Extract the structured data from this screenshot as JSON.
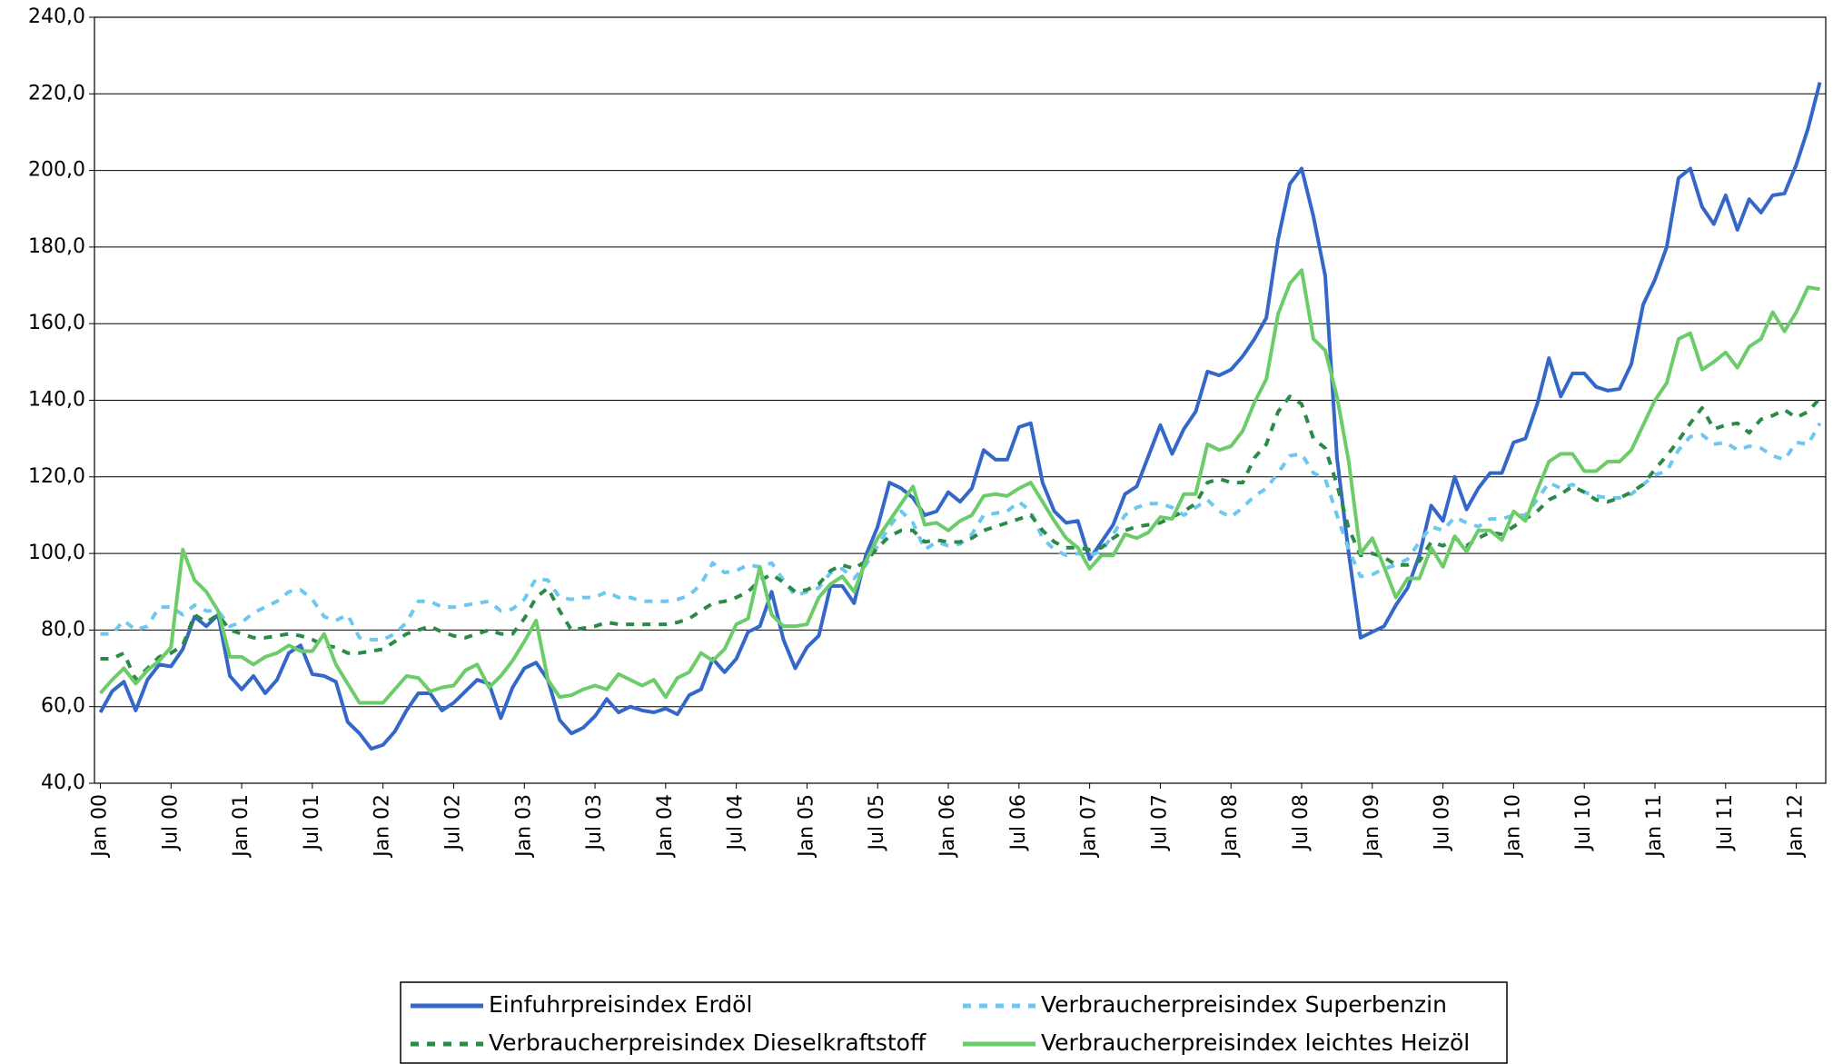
{
  "chart_data": {
    "type": "line",
    "categories": [
      "Jan 00",
      null,
      null,
      null,
      null,
      null,
      "Jul 00",
      null,
      null,
      null,
      null,
      null,
      "Jan 01",
      null,
      null,
      null,
      null,
      null,
      "Jul 01",
      null,
      null,
      null,
      null,
      null,
      "Jan 02",
      null,
      null,
      null,
      null,
      null,
      "Jul 02",
      null,
      null,
      null,
      null,
      null,
      "Jan 03",
      null,
      null,
      null,
      null,
      null,
      "Jul 03",
      null,
      null,
      null,
      null,
      null,
      "Jan 04",
      null,
      null,
      null,
      null,
      null,
      "Jul 04",
      null,
      null,
      null,
      null,
      null,
      "Jan 05",
      null,
      null,
      null,
      null,
      null,
      "Jul 05",
      null,
      null,
      null,
      null,
      null,
      "Jan 06",
      null,
      null,
      null,
      null,
      null,
      "Jul 06",
      null,
      null,
      null,
      null,
      null,
      "Jan 07",
      null,
      null,
      null,
      null,
      null,
      "Jul 07",
      null,
      null,
      null,
      null,
      null,
      "Jan 08",
      null,
      null,
      null,
      null,
      null,
      "Jul 08",
      null,
      null,
      null,
      null,
      null,
      "Jan 09",
      null,
      null,
      null,
      null,
      null,
      "Jul 09",
      null,
      null,
      null,
      null,
      null,
      "Jan 10",
      null,
      null,
      null,
      null,
      null,
      "Jul 10",
      null,
      null,
      null,
      null,
      null,
      "Jan 11",
      null,
      null,
      null,
      null,
      null,
      "Jul 11",
      null,
      null,
      null,
      null,
      null,
      "Jan 12",
      null,
      null
    ],
    "series": [
      {
        "name": "Einfuhrpreisindex Erdöl",
        "color": "#3567c8",
        "dashed": false,
        "values": [
          58.5,
          64,
          66.5,
          59,
          67,
          71,
          70.5,
          75,
          83.5,
          81,
          84,
          68,
          64.5,
          68,
          63.5,
          67,
          74,
          76,
          68.5,
          68,
          66.5,
          56,
          53,
          49,
          50,
          53.5,
          59,
          63.5,
          63.5,
          59,
          61,
          64,
          67,
          66,
          57,
          65,
          70,
          71.5,
          67,
          56.5,
          53,
          54.5,
          57.5,
          62,
          58.5,
          60,
          59,
          58.5,
          59.5,
          58,
          63,
          64.5,
          72.5,
          69,
          72.5,
          79.5,
          81,
          90,
          77.5,
          70,
          75.5,
          78.5,
          91.5,
          91.5,
          87,
          99.5,
          107,
          118.5,
          117,
          114.5,
          110,
          111,
          116,
          113.5,
          117,
          127,
          124.5,
          124.5,
          133,
          134,
          118.5,
          111,
          108,
          108.5,
          98.5,
          103,
          107.5,
          115.5,
          117.5,
          125.5,
          133.5,
          126,
          132.5,
          137,
          147.5,
          146.5,
          148,
          151.5,
          156,
          161.5,
          182,
          196.5,
          200.5,
          188,
          172.5,
          125,
          100,
          78,
          79.5,
          81,
          86.5,
          91,
          99.5,
          112.5,
          108.5,
          120,
          111.5,
          117,
          121,
          121,
          129,
          130,
          139,
          151,
          141,
          147,
          147,
          143.5,
          142.5,
          143,
          149.5,
          165,
          171.5,
          180,
          198,
          200.5,
          190.5,
          186,
          193.5,
          184.5,
          192.5,
          189,
          193.5,
          194,
          201.5,
          211,
          223
        ]
      },
      {
        "name": "Verbraucherpreisindex Superbenzin",
        "color": "#6cc8f0",
        "dashed": true,
        "values": [
          79,
          79,
          82.5,
          80,
          81,
          86,
          86,
          84,
          86.5,
          85,
          85,
          81,
          82,
          84.5,
          86,
          87.5,
          90,
          90.5,
          88,
          83.5,
          82.5,
          84,
          78,
          77.5,
          77.5,
          79,
          82,
          87.5,
          87.5,
          86,
          86,
          86.5,
          87,
          87.5,
          85,
          85.5,
          88,
          93.5,
          93,
          88.5,
          88,
          88.5,
          88.5,
          90,
          88.5,
          88.5,
          87.5,
          87.5,
          87.5,
          88,
          89,
          92,
          97.5,
          95,
          95.5,
          97,
          96.5,
          97.5,
          93,
          89,
          90,
          91,
          95,
          96,
          93.5,
          97,
          102,
          107,
          111,
          108,
          101,
          103,
          102,
          102.5,
          105,
          110,
          110.5,
          111,
          113.5,
          111,
          104,
          101,
          99.5,
          100,
          99.5,
          100.5,
          105,
          110,
          112,
          113,
          113,
          112,
          110,
          112,
          114,
          111,
          109.5,
          112,
          115,
          117,
          121,
          125.5,
          126,
          121,
          119.5,
          110,
          101,
          94,
          94.5,
          96,
          97,
          98.5,
          103,
          107,
          106,
          109.5,
          108,
          107,
          109,
          109,
          110,
          110,
          114,
          118.5,
          117,
          118,
          116,
          115,
          114.5,
          114.5,
          115.5,
          118,
          120.5,
          121.5,
          127,
          130.5,
          131,
          128.5,
          129,
          127,
          128,
          127.5,
          125.5,
          124.5,
          129,
          128.5,
          134
        ]
      },
      {
        "name": "Verbraucherpreisindex Dieselkraftstoff",
        "color": "#2b8a48",
        "dashed": true,
        "values": [
          72.5,
          72.5,
          74,
          67,
          70,
          73,
          74,
          76,
          84,
          82,
          84,
          80,
          79,
          78,
          78,
          78.5,
          79,
          78.5,
          77.5,
          76,
          75.5,
          74,
          74,
          74.5,
          75,
          77,
          79,
          80,
          81,
          79.5,
          78.5,
          78,
          79,
          80,
          79,
          79,
          83,
          88.5,
          91,
          85,
          80,
          80.5,
          81,
          82,
          81.5,
          81.5,
          81.5,
          81.5,
          81.5,
          82,
          83,
          85,
          87,
          87.5,
          88.5,
          90,
          93,
          94.5,
          92.5,
          90,
          90.5,
          92,
          95.5,
          97,
          96,
          98,
          101.5,
          104.5,
          106,
          106,
          103,
          103.5,
          103,
          103,
          104,
          106,
          107,
          108,
          109,
          110,
          106,
          103,
          101.5,
          101.5,
          101,
          101.5,
          104,
          106,
          107,
          107.5,
          108,
          109.5,
          111,
          113,
          118.5,
          119.5,
          118.5,
          118.5,
          125,
          128.5,
          137,
          141,
          139,
          130,
          127.5,
          118,
          106.5,
          99.5,
          100,
          99,
          97,
          97,
          98,
          103,
          102,
          104,
          102,
          104,
          105.5,
          105,
          107,
          109,
          111,
          114,
          115.5,
          117.5,
          116,
          114,
          113.5,
          114.5,
          116,
          118,
          122,
          125.5,
          129.5,
          134,
          138,
          132.5,
          133.5,
          134,
          131.5,
          135,
          136,
          137.5,
          135.5,
          137,
          140.5
        ]
      },
      {
        "name": "Verbraucherpreisindex leichtes Heizöl",
        "color": "#6dcc6a",
        "dashed": false,
        "values": [
          63.5,
          67,
          70,
          66,
          69.5,
          72,
          75.5,
          101,
          93,
          90,
          85,
          73,
          73,
          71,
          73,
          74,
          76,
          74.5,
          74.5,
          79,
          71,
          66,
          61,
          61,
          61,
          64.5,
          68,
          67.5,
          64,
          65,
          65.5,
          69.5,
          71,
          65,
          68,
          72,
          77,
          82.5,
          67,
          62.5,
          63,
          64.5,
          65.5,
          64.5,
          68.5,
          67,
          65.5,
          67,
          62.5,
          67.5,
          69,
          74,
          72,
          75,
          81.5,
          83,
          96.5,
          84,
          81,
          81,
          81.5,
          88.5,
          92,
          94,
          90,
          98,
          104,
          108.5,
          113,
          117.5,
          107.5,
          108,
          106,
          108.5,
          110,
          115,
          115.5,
          115,
          117,
          118.5,
          113.5,
          108.5,
          104,
          101.5,
          96,
          99.5,
          99.5,
          105,
          104,
          105.5,
          109.5,
          109,
          115.5,
          115.5,
          128.5,
          127,
          128,
          132,
          139.5,
          145.5,
          162.5,
          170.5,
          174,
          156,
          153,
          141,
          124,
          100,
          104,
          96.5,
          88.5,
          93.5,
          93.5,
          101.5,
          96.5,
          104.5,
          100.5,
          106,
          106,
          103.5,
          111,
          108.5,
          116.5,
          124,
          126,
          126,
          121.5,
          121.5,
          124,
          124,
          127,
          133.5,
          140,
          144.5,
          156,
          157.5,
          148,
          150,
          152.5,
          148.5,
          154,
          156,
          163,
          158,
          163,
          169.5,
          169
        ]
      }
    ],
    "ylim": [
      40,
      240
    ],
    "yticks": [
      {
        "value": 40,
        "label": "40,0"
      },
      {
        "value": 60,
        "label": "60,0"
      },
      {
        "value": 80,
        "label": "80,0"
      },
      {
        "value": 100,
        "label": "100,0"
      },
      {
        "value": 120,
        "label": "120,0"
      },
      {
        "value": 140,
        "label": "140,0"
      },
      {
        "value": 160,
        "label": "160,0"
      },
      {
        "value": 180,
        "label": "180,0"
      },
      {
        "value": 200,
        "label": "200,0"
      },
      {
        "value": 220,
        "label": "220,0"
      },
      {
        "value": 240,
        "label": "240,0"
      }
    ],
    "grid": true,
    "legend": "bottom"
  }
}
